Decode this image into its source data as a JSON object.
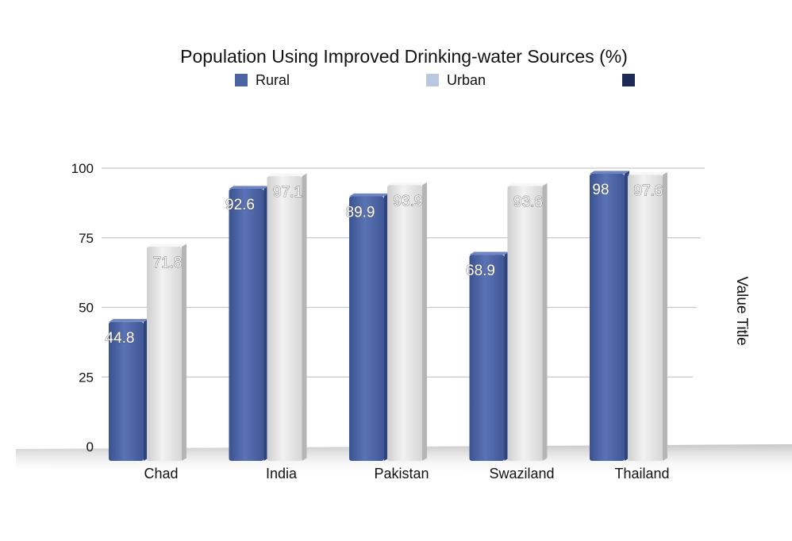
{
  "chart_data": {
    "type": "bar",
    "title": "Population Using Improved Drinking-water Sources (%)",
    "categories": [
      "Chad",
      "India",
      "Pakistan",
      "Swaziland",
      "Thailand"
    ],
    "series": [
      {
        "name": "Rural",
        "values": [
          44.8,
          92.6,
          89.9,
          68.9,
          98
        ],
        "color": "#4a63a3"
      },
      {
        "name": "Urban",
        "values": [
          71.8,
          97.1,
          93.9,
          93.6,
          97.6
        ],
        "color": "#e3e3e3"
      }
    ],
    "legend": [
      {
        "label": "Rural",
        "color": "#4a63a3"
      },
      {
        "label": "Urban",
        "color": "#b9c8e0"
      },
      {
        "label": "",
        "color": "#1c2a57"
      }
    ],
    "legend_position": "top",
    "ylabel": "Value Title",
    "ylabel_position": "right",
    "ylim": [
      0,
      100
    ],
    "yticks": [
      0,
      25,
      50,
      75,
      100
    ],
    "grid": true,
    "data_labels": true,
    "style": "3d-perspective"
  }
}
